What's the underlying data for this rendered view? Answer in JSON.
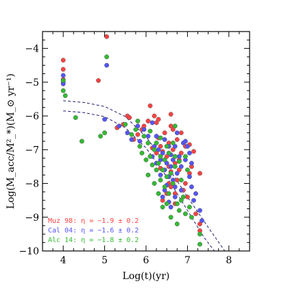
{
  "chart_data": {
    "type": "scatter",
    "xlabel": "Log(t)(yr)",
    "ylabel": "Log(M_acc/M²_*)(M_⊙ yr⁻¹)",
    "xlim": [
      3.5,
      8.5
    ],
    "ylim": [
      -10,
      -3.5
    ],
    "x_ticks": [
      "4",
      "5",
      "6",
      "7",
      "8"
    ],
    "y_ticks": [
      "−4",
      "−5",
      "−6",
      "−7",
      "−8",
      "−9",
      "−10"
    ],
    "x_tick_values": [
      4,
      5,
      6,
      7,
      8
    ],
    "y_tick_values": [
      -4,
      -5,
      -6,
      -7,
      -8,
      -9,
      -10
    ],
    "series": [
      {
        "name": "Muz 98",
        "color": "#ff4444",
        "legend": "Muz 98: η = −1.9 ±  0.2",
        "points": [
          [
            4.0,
            -4.35
          ],
          [
            4.0,
            -4.62
          ],
          [
            4.0,
            -4.92
          ],
          [
            5.05,
            -3.65
          ],
          [
            4.85,
            -4.95
          ],
          [
            5.3,
            -6.35
          ],
          [
            5.45,
            -6.25
          ],
          [
            5.55,
            -6.0
          ],
          [
            5.6,
            -6.05
          ],
          [
            5.7,
            -6.7
          ],
          [
            5.8,
            -6.55
          ],
          [
            5.9,
            -6.4
          ],
          [
            5.95,
            -6.3
          ],
          [
            6.1,
            -5.7
          ],
          [
            6.2,
            -6.0
          ],
          [
            6.25,
            -6.2
          ],
          [
            6.3,
            -6.65
          ],
          [
            6.35,
            -6.9
          ],
          [
            6.4,
            -7.05
          ],
          [
            6.45,
            -7.3
          ],
          [
            6.5,
            -7.2
          ],
          [
            6.55,
            -7.5
          ],
          [
            6.6,
            -7.65
          ],
          [
            6.65,
            -6.4
          ],
          [
            6.7,
            -7.4
          ],
          [
            6.75,
            -7.9
          ],
          [
            6.8,
            -7.3
          ],
          [
            6.85,
            -7.1
          ],
          [
            6.6,
            -8.1
          ],
          [
            6.7,
            -8.3
          ],
          [
            6.9,
            -8.2
          ],
          [
            6.95,
            -6.9
          ],
          [
            7.05,
            -7.7
          ],
          [
            7.1,
            -7.5
          ],
          [
            7.3,
            -7.7
          ],
          [
            6.55,
            -8.0
          ],
          [
            6.4,
            -8.5
          ],
          [
            6.7,
            -8.6
          ],
          [
            6.85,
            -6.5
          ],
          [
            6.6,
            -5.95
          ],
          [
            6.45,
            -6.5
          ],
          [
            6.15,
            -6.95
          ],
          [
            6.25,
            -7.1
          ],
          [
            6.35,
            -7.55
          ],
          [
            6.55,
            -6.8
          ],
          [
            6.65,
            -7.0
          ],
          [
            6.75,
            -6.7
          ],
          [
            6.8,
            -7.6
          ],
          [
            6.95,
            -8.0
          ],
          [
            7.0,
            -8.4
          ],
          [
            7.05,
            -6.85
          ],
          [
            7.15,
            -7.05
          ],
          [
            7.2,
            -8.9
          ],
          [
            7.3,
            -9.2
          ],
          [
            7.3,
            -9.4
          ],
          [
            6.6,
            -6.3
          ],
          [
            6.55,
            -7.8
          ],
          [
            6.5,
            -8.3
          ],
          [
            6.3,
            -6.1
          ],
          [
            6.05,
            -6.15
          ]
        ]
      },
      {
        "name": "Cal 04",
        "color": "#5555ff",
        "legend": "Cal 04: η = −1.6 ±  0.2",
        "points": [
          [
            4.0,
            -4.8
          ],
          [
            4.0,
            -5.0
          ],
          [
            4.0,
            -5.05
          ],
          [
            5.05,
            -4.5
          ],
          [
            5.0,
            -6.1
          ],
          [
            5.35,
            -6.3
          ],
          [
            5.55,
            -6.5
          ],
          [
            5.65,
            -6.7
          ],
          [
            5.8,
            -6.3
          ],
          [
            5.85,
            -6.75
          ],
          [
            5.95,
            -6.4
          ],
          [
            6.05,
            -6.6
          ],
          [
            6.15,
            -6.2
          ],
          [
            6.2,
            -6.9
          ],
          [
            6.25,
            -6.6
          ],
          [
            6.3,
            -7.0
          ],
          [
            6.35,
            -7.3
          ],
          [
            6.4,
            -7.1
          ],
          [
            6.45,
            -7.6
          ],
          [
            6.5,
            -7.4
          ],
          [
            6.55,
            -7.8
          ],
          [
            6.6,
            -7.5
          ],
          [
            6.65,
            -7.9
          ],
          [
            6.7,
            -8.1
          ],
          [
            6.75,
            -7.7
          ],
          [
            6.8,
            -7.2
          ],
          [
            6.85,
            -7.5
          ],
          [
            6.9,
            -6.8
          ],
          [
            6.95,
            -7.3
          ],
          [
            7.0,
            -6.9
          ],
          [
            7.05,
            -7.1
          ],
          [
            7.1,
            -8.1
          ],
          [
            7.15,
            -8.5
          ],
          [
            7.2,
            -8.3
          ],
          [
            7.3,
            -8.8
          ],
          [
            7.35,
            -9.1
          ],
          [
            6.55,
            -6.9
          ],
          [
            6.6,
            -7.15
          ],
          [
            6.7,
            -6.9
          ],
          [
            6.45,
            -6.7
          ],
          [
            6.35,
            -7.75
          ],
          [
            6.5,
            -8.05
          ],
          [
            6.4,
            -8.4
          ],
          [
            6.6,
            -8.7
          ],
          [
            6.7,
            -8.4
          ],
          [
            6.85,
            -8.2
          ],
          [
            7.05,
            -7.8
          ],
          [
            6.25,
            -7.4
          ],
          [
            6.15,
            -7.2
          ],
          [
            6.65,
            -7.3
          ],
          [
            6.75,
            -6.5
          ],
          [
            6.95,
            -6.75
          ],
          [
            7.1,
            -7.4
          ],
          [
            6.55,
            -8.55
          ],
          [
            6.45,
            -8.2
          ]
        ]
      },
      {
        "name": "Alc 14",
        "color": "#33bb33",
        "legend": "Alc 14: η = −1.8 ±  0.2",
        "points": [
          [
            4.0,
            -4.95
          ],
          [
            4.0,
            -5.25
          ],
          [
            4.05,
            -5.4
          ],
          [
            5.05,
            -4.25
          ],
          [
            5.0,
            -6.5
          ],
          [
            4.3,
            -6.05
          ],
          [
            4.45,
            -6.75
          ],
          [
            4.9,
            -6.6
          ],
          [
            5.5,
            -6.25
          ],
          [
            5.65,
            -6.55
          ],
          [
            5.75,
            -6.4
          ],
          [
            5.85,
            -6.9
          ],
          [
            5.95,
            -6.6
          ],
          [
            6.05,
            -6.8
          ],
          [
            6.1,
            -7.2
          ],
          [
            6.2,
            -7.0
          ],
          [
            6.25,
            -7.6
          ],
          [
            6.3,
            -7.4
          ],
          [
            6.35,
            -7.9
          ],
          [
            6.4,
            -7.6
          ],
          [
            6.45,
            -8.1
          ],
          [
            6.5,
            -7.8
          ],
          [
            6.55,
            -8.3
          ],
          [
            6.6,
            -7.7
          ],
          [
            6.65,
            -8.0
          ],
          [
            6.7,
            -7.5
          ],
          [
            6.75,
            -8.6
          ],
          [
            6.8,
            -8.8
          ],
          [
            6.85,
            -7.9
          ],
          [
            6.9,
            -8.4
          ],
          [
            6.95,
            -8.9
          ],
          [
            7.05,
            -8.7
          ],
          [
            7.1,
            -9.0
          ],
          [
            7.3,
            -9.5
          ],
          [
            7.3,
            -9.8
          ],
          [
            6.3,
            -8.3
          ],
          [
            6.4,
            -8.7
          ],
          [
            6.2,
            -8.0
          ],
          [
            6.15,
            -7.45
          ],
          [
            6.0,
            -7.3
          ],
          [
            5.9,
            -7.1
          ],
          [
            6.05,
            -7.75
          ],
          [
            6.35,
            -6.65
          ],
          [
            6.5,
            -6.9
          ],
          [
            6.55,
            -7.1
          ],
          [
            6.65,
            -6.8
          ],
          [
            6.7,
            -7.2
          ],
          [
            6.8,
            -7.35
          ],
          [
            6.95,
            -7.2
          ],
          [
            7.0,
            -7.6
          ],
          [
            6.45,
            -7.3
          ],
          [
            6.6,
            -9.0
          ],
          [
            6.75,
            -9.2
          ],
          [
            6.5,
            -8.6
          ],
          [
            6.25,
            -6.8
          ],
          [
            5.8,
            -6.15
          ],
          [
            6.1,
            -6.45
          ],
          [
            6.7,
            -6.3
          ],
          [
            6.85,
            -8.5
          ],
          [
            6.35,
            -7.2
          ]
        ]
      }
    ],
    "curves": [
      {
        "name": "",
        "points": [
          [
            4.0,
            -5.55
          ],
          [
            4.5,
            -5.6
          ],
          [
            5.0,
            -5.72
          ],
          [
            5.5,
            -6.02
          ],
          [
            6.0,
            -6.62
          ],
          [
            6.5,
            -7.45
          ],
          [
            7.0,
            -8.4
          ],
          [
            7.5,
            -9.3
          ],
          [
            7.9,
            -10.0
          ]
        ]
      },
      {
        "name": "",
        "points": [
          [
            4.0,
            -5.85
          ],
          [
            4.5,
            -5.9
          ],
          [
            5.0,
            -6.02
          ],
          [
            5.5,
            -6.35
          ],
          [
            6.0,
            -6.95
          ],
          [
            6.5,
            -7.8
          ],
          [
            7.0,
            -8.8
          ],
          [
            7.4,
            -9.6
          ],
          [
            7.65,
            -10.0
          ]
        ]
      }
    ]
  }
}
